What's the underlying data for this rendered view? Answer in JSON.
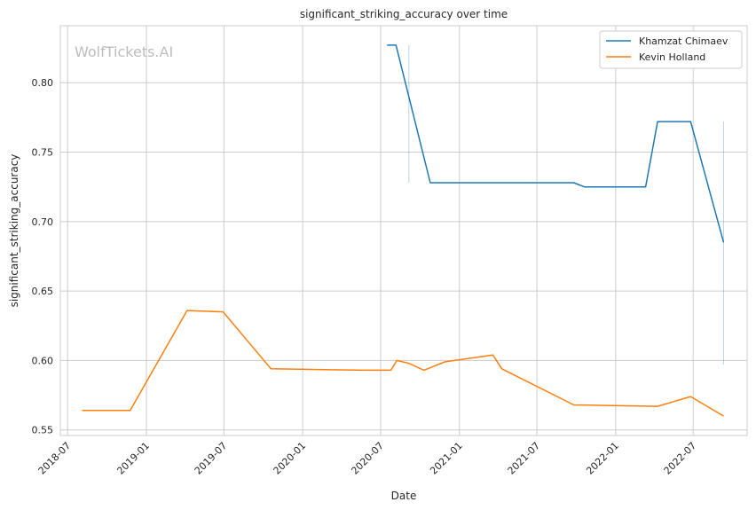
{
  "chart_data": {
    "type": "line",
    "title": "significant_striking_accuracy over time",
    "xlabel": "Date",
    "ylabel": "significant_striking_accuracy",
    "watermark": "WolfTickets.AI",
    "x_ticks": [
      "2018-07",
      "2019-01",
      "2019-07",
      "2020-01",
      "2020-07",
      "2021-01",
      "2021-07",
      "2022-01",
      "2022-07"
    ],
    "y_ticks": [
      "0.55",
      "0.60",
      "0.65",
      "0.70",
      "0.75",
      "0.80"
    ],
    "xlim": [
      "2018-06-14",
      "2022-11-04"
    ],
    "ylim": [
      0.546,
      0.841
    ],
    "grid": true,
    "legend_position": "top-right",
    "series": [
      {
        "name": "Khamzat Chimaev",
        "color": "#1f77b4",
        "points": [
          [
            "2020-07-16",
            0.827
          ],
          [
            "2020-08-06",
            0.827
          ],
          [
            "2020-10-25",
            0.728
          ],
          [
            "2021-09-25",
            0.728
          ],
          [
            "2021-10-20",
            0.725
          ],
          [
            "2022-03-12",
            0.725
          ],
          [
            "2022-04-09",
            0.772
          ],
          [
            "2022-06-25",
            0.772
          ],
          [
            "2022-09-10",
            0.685
          ]
        ],
        "bands": [
          {
            "x": "2020-09-05",
            "low": 0.728,
            "high": 0.827
          },
          {
            "x": "2022-09-10",
            "low": 0.597,
            "high": 0.772
          }
        ]
      },
      {
        "name": "Kevin Holland",
        "color": "#ff7f0e",
        "points": [
          [
            "2018-08-04",
            0.564
          ],
          [
            "2018-11-24",
            0.564
          ],
          [
            "2019-04-06",
            0.636
          ],
          [
            "2019-06-29",
            0.635
          ],
          [
            "2019-10-19",
            0.594
          ],
          [
            "2020-05-23",
            0.593
          ],
          [
            "2020-07-25",
            0.593
          ],
          [
            "2020-08-08",
            0.6
          ],
          [
            "2020-09-05",
            0.598
          ],
          [
            "2020-10-10",
            0.593
          ],
          [
            "2020-11-28",
            0.599
          ],
          [
            "2021-03-20",
            0.604
          ],
          [
            "2021-04-10",
            0.594
          ],
          [
            "2021-09-25",
            0.568
          ],
          [
            "2022-04-09",
            0.567
          ],
          [
            "2022-06-25",
            0.574
          ],
          [
            "2022-09-10",
            0.56
          ]
        ]
      }
    ]
  }
}
